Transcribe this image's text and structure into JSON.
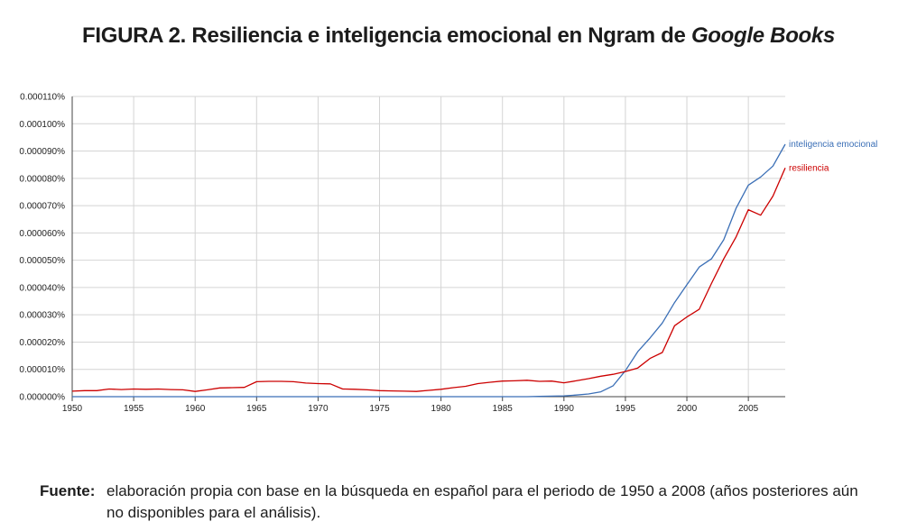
{
  "figure": {
    "title_prefix": "FIGURA 2.",
    "title_main": " Resiliencia e inteligencia emocional en Ngram de ",
    "title_italic": "Google Books"
  },
  "source": {
    "label": "Fuente:",
    "text": "elaboración propia con base en la búsqueda en español para el periodo de 1950 a 2008 (años posteriores aún no disponibles para el análisis)."
  },
  "colors": {
    "inteligencia_emocional": "#3b6fb6",
    "resiliencia": "#cc0000",
    "grid": "#d4d4d4",
    "axis": "#444444"
  },
  "chart_data": {
    "type": "line",
    "title": "Resiliencia e inteligencia emocional en Ngram de Google Books",
    "xlabel": "",
    "ylabel": "",
    "xlim": [
      1950,
      2008
    ],
    "ylim": [
      0,
      0.00011
    ],
    "grid": true,
    "legend_placement": "right-end-labels",
    "x_ticks": [
      1950,
      1955,
      1960,
      1965,
      1970,
      1975,
      1980,
      1985,
      1990,
      1995,
      2000,
      2005
    ],
    "y_ticks": [
      0,
      1e-05,
      2e-05,
      3e-05,
      4e-05,
      5e-05,
      6e-05,
      7e-05,
      8e-05,
      9e-05,
      0.0001,
      0.00011
    ],
    "x_tick_labels": [
      "1950",
      "1955",
      "1960",
      "1965",
      "1970",
      "1975",
      "1980",
      "1985",
      "1990",
      "1995",
      "2000",
      "2005"
    ],
    "y_tick_labels": [
      "0.000000%",
      "0.000010%",
      "0.000020%",
      "0.000030%",
      "0.000040%",
      "0.000050%",
      "0.000060%",
      "0.000070%",
      "0.000080%",
      "0.000090%",
      "0.000100%",
      "0.000110%"
    ],
    "x": [
      1950,
      1951,
      1952,
      1953,
      1954,
      1955,
      1956,
      1957,
      1958,
      1959,
      1960,
      1961,
      1962,
      1963,
      1964,
      1965,
      1966,
      1967,
      1968,
      1969,
      1970,
      1971,
      1972,
      1973,
      1974,
      1975,
      1976,
      1977,
      1978,
      1979,
      1980,
      1981,
      1982,
      1983,
      1984,
      1985,
      1986,
      1987,
      1988,
      1989,
      1990,
      1991,
      1992,
      1993,
      1994,
      1995,
      1996,
      1997,
      1998,
      1999,
      2000,
      2001,
      2002,
      2003,
      2004,
      2005,
      2006,
      2007,
      2008
    ],
    "series": [
      {
        "name": "inteligencia emocional",
        "color_key": "inteligencia_emocional",
        "values": [
          0,
          0,
          0,
          0,
          0,
          0,
          0,
          0,
          0,
          0,
          0,
          0,
          0,
          0,
          0,
          0,
          0,
          0,
          0,
          0,
          0,
          0,
          0,
          0,
          0,
          0,
          0,
          0,
          0,
          0,
          0,
          0,
          0,
          0,
          0,
          0,
          0,
          0,
          1e-07,
          2e-07,
          3e-07,
          6e-07,
          1e-06,
          1.8e-06,
          4e-06,
          9.5e-06,
          1.65e-05,
          2.15e-05,
          2.7e-05,
          3.45e-05,
          4.1e-05,
          4.75e-05,
          5.05e-05,
          5.75e-05,
          6.9e-05,
          7.75e-05,
          8.05e-05,
          8.45e-05,
          9.25e-05
        ]
      },
      {
        "name": "resiliencia",
        "color_key": "resiliencia",
        "values": [
          2e-06,
          2.2e-06,
          2.2e-06,
          2.8e-06,
          2.6e-06,
          2.8e-06,
          2.7e-06,
          2.8e-06,
          2.6e-06,
          2.5e-06,
          1.9e-06,
          2.5e-06,
          3.2e-06,
          3.3e-06,
          3.4e-06,
          5.5e-06,
          5.6e-06,
          5.6e-06,
          5.5e-06,
          5e-06,
          4.8e-06,
          4.7e-06,
          2.8e-06,
          2.7e-06,
          2.5e-06,
          2.2e-06,
          2.1e-06,
          2e-06,
          1.9e-06,
          2.3e-06,
          2.7e-06,
          3.3e-06,
          3.8e-06,
          4.8e-06,
          5.3e-06,
          5.7e-06,
          5.8e-06,
          6e-06,
          5.6e-06,
          5.7e-06,
          5.1e-06,
          5.8e-06,
          6.6e-06,
          7.5e-06,
          8.2e-06,
          9.2e-06,
          1.05e-05,
          1.4e-05,
          1.62e-05,
          2.6e-05,
          2.92e-05,
          3.2e-05,
          4.15e-05,
          5.05e-05,
          5.85e-05,
          6.85e-05,
          6.65e-05,
          7.35e-05,
          8.38e-05
        ]
      }
    ]
  }
}
